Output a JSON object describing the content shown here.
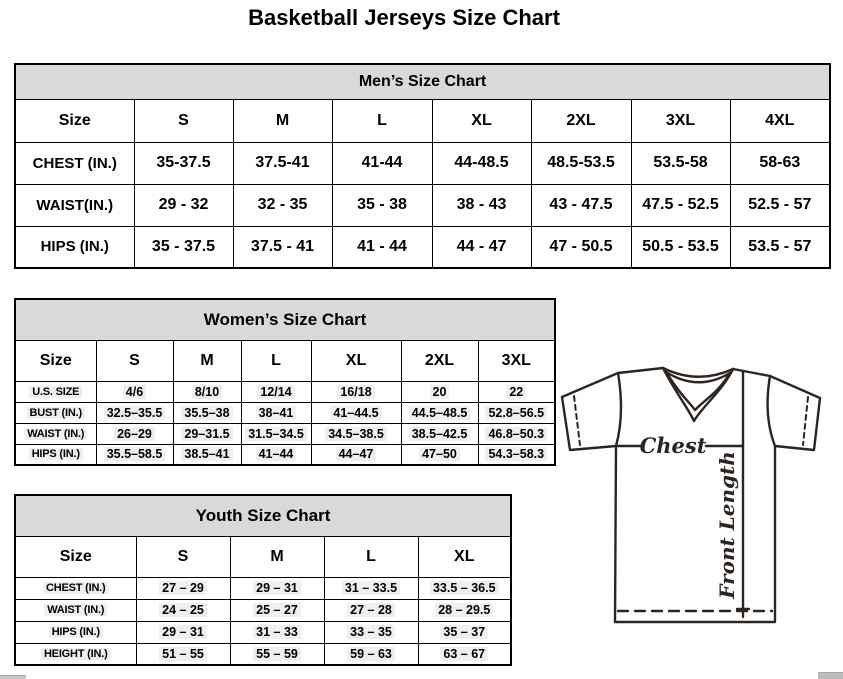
{
  "page_title": "Basketball Jerseys Size Chart",
  "mens_chart": {
    "title": "Men’s Size Chart",
    "columns": [
      "Size",
      "S",
      "M",
      "L",
      "XL",
      "2XL",
      "3XL",
      "4XL"
    ],
    "rows": [
      {
        "label": "CHEST (IN.)",
        "values": [
          "35-37.5",
          "37.5-41",
          "41-44",
          "44-48.5",
          "48.5-53.5",
          "53.5-58",
          "58-63"
        ]
      },
      {
        "label": "WAIST(IN.)",
        "values": [
          "29 - 32",
          "32 - 35",
          "35 - 38",
          "38 - 43",
          "43 - 47.5",
          "47.5 - 52.5",
          "52.5 - 57"
        ]
      },
      {
        "label": "HIPS (IN.)",
        "values": [
          "35 - 37.5",
          "37.5 - 41",
          "41 - 44",
          "44 - 47",
          "47 - 50.5",
          "50.5 - 53.5",
          "53.5 - 57"
        ]
      }
    ]
  },
  "womens_chart": {
    "title": "Women’s Size Chart",
    "columns": [
      "Size",
      "S",
      "M",
      "L",
      "XL",
      "2XL",
      "3XL"
    ],
    "rows": [
      {
        "label": "U.S. SIZE",
        "values": [
          "4/6",
          "8/10",
          "12/14",
          "16/18",
          "20",
          "22"
        ]
      },
      {
        "label": "BUST (IN.)",
        "values": [
          "32.5–35.5",
          "35.5–38",
          "38–41",
          "41–44.5",
          "44.5–48.5",
          "52.8–56.5"
        ]
      },
      {
        "label": "WAIST (IN.)",
        "values": [
          "26–29",
          "29–31.5",
          "31.5–34.5",
          "34.5–38.5",
          "38.5–42.5",
          "46.8–50.3"
        ]
      },
      {
        "label": "HIPS (IN.)",
        "values": [
          "35.5–58.5",
          "38.5–41",
          "41–44",
          "44–47",
          "47–50",
          "54.3–58.3"
        ]
      }
    ]
  },
  "youth_chart": {
    "title": "Youth Size Chart",
    "columns": [
      "Size",
      "S",
      "M",
      "L",
      "XL"
    ],
    "rows": [
      {
        "label": "CHEST (IN.)",
        "values": [
          "27 – 29",
          "29 – 31",
          "31 – 33.5",
          "33.5 – 36.5"
        ]
      },
      {
        "label": "WAIST (IN.)",
        "values": [
          "24 – 25",
          "25 – 27",
          "27 – 28",
          "28 – 29.5"
        ]
      },
      {
        "label": "HIPS (IN.)",
        "values": [
          "29 – 31",
          "31 – 33",
          "33 – 35",
          "35 – 37"
        ]
      },
      {
        "label": "HEIGHT (IN.)",
        "values": [
          "51 – 55",
          "55 – 59",
          "59 – 63",
          "63 – 67"
        ]
      }
    ]
  },
  "diagram": {
    "chest_label": "Chest",
    "front_length_label": "Front Length",
    "stroke_color": "#2d241f"
  },
  "colors": {
    "header_band": "#d9d9d9",
    "border": "#000000",
    "cell_highlight": "#efefef"
  }
}
